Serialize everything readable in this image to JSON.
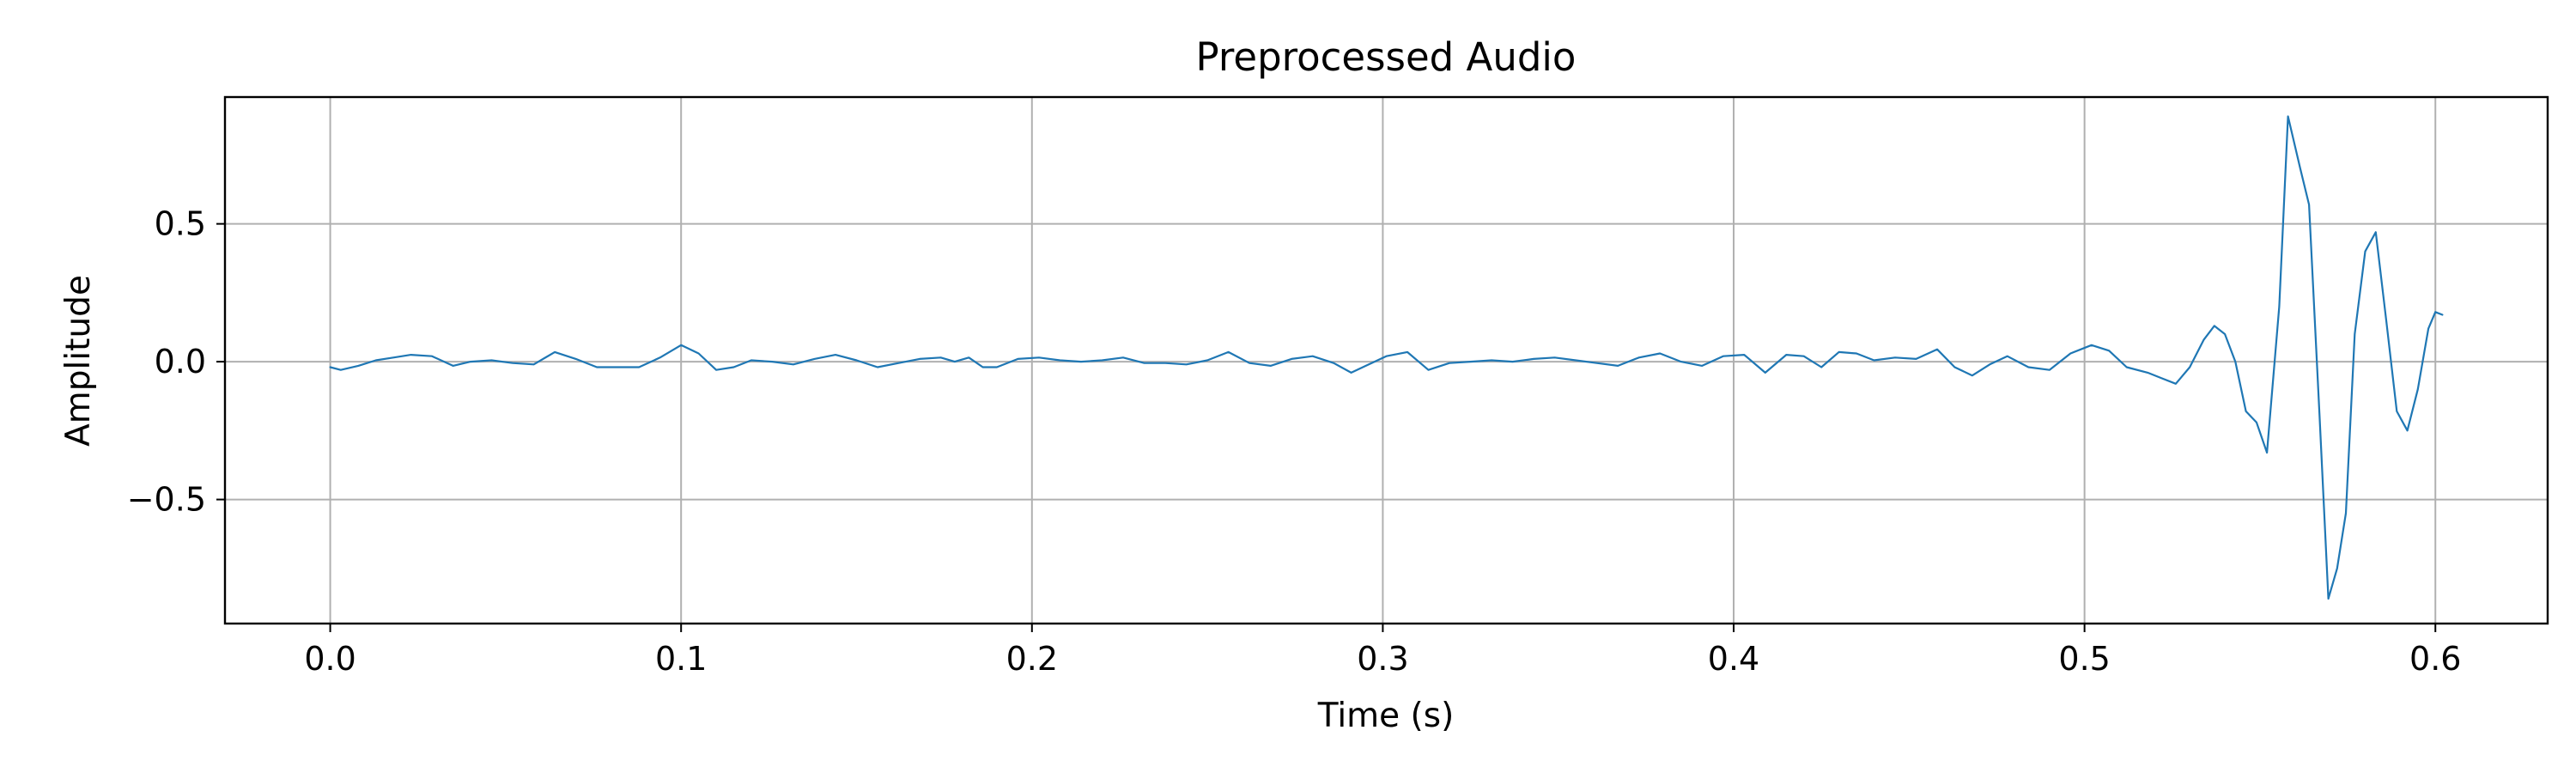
{
  "chart_data": {
    "type": "line",
    "title": "Preprocessed Audio",
    "xlabel": "Time (s)",
    "ylabel": "Amplitude",
    "xlim": [
      -0.03,
      0.632
    ],
    "ylim": [
      -0.95,
      0.96
    ],
    "x_ticks": [
      0.0,
      0.1,
      0.2,
      0.3,
      0.4,
      0.5,
      0.6
    ],
    "x_tick_labels": [
      "0.0",
      "0.1",
      "0.2",
      "0.3",
      "0.4",
      "0.5",
      "0.6"
    ],
    "y_ticks": [
      -0.5,
      0.0,
      0.5
    ],
    "y_tick_labels": [
      "−0.5",
      "0.0",
      "0.5"
    ],
    "grid": true,
    "line_color": "#1f77b4",
    "series": [
      {
        "x": [
          0.0,
          0.003,
          0.008,
          0.013,
          0.018,
          0.023,
          0.029,
          0.035,
          0.04,
          0.046,
          0.052,
          0.058,
          0.064,
          0.07,
          0.076,
          0.082,
          0.088,
          0.094,
          0.1,
          0.105,
          0.11,
          0.115,
          0.12,
          0.126,
          0.132,
          0.138,
          0.144,
          0.15,
          0.156,
          0.162,
          0.168,
          0.174,
          0.178,
          0.182,
          0.186,
          0.19,
          0.196,
          0.202,
          0.208,
          0.214,
          0.22,
          0.226,
          0.232,
          0.238,
          0.244,
          0.25,
          0.256,
          0.262,
          0.268,
          0.274,
          0.28,
          0.286,
          0.291,
          0.296,
          0.301,
          0.307,
          0.313,
          0.319,
          0.325,
          0.331,
          0.337,
          0.343,
          0.349,
          0.355,
          0.361,
          0.367,
          0.373,
          0.379,
          0.385,
          0.391,
          0.397,
          0.403,
          0.409,
          0.415,
          0.42,
          0.425,
          0.43,
          0.435,
          0.44,
          0.446,
          0.452,
          0.458,
          0.463,
          0.468,
          0.473,
          0.478,
          0.484,
          0.49,
          0.496,
          0.502,
          0.507,
          0.512,
          0.518,
          0.522,
          0.526,
          0.53,
          0.534,
          0.537,
          0.54,
          0.543,
          0.546,
          0.549,
          0.552,
          0.5555,
          0.558,
          0.5615,
          0.564,
          0.567,
          0.5695,
          0.572,
          0.5745,
          0.577,
          0.58,
          0.583,
          0.586,
          0.589,
          0.592,
          0.595,
          0.598,
          0.6,
          0.602
        ],
        "y": [
          -0.02,
          -0.03,
          -0.015,
          0.005,
          0.015,
          0.025,
          0.02,
          -0.015,
          0.0,
          0.005,
          -0.005,
          -0.01,
          0.035,
          0.01,
          -0.02,
          -0.02,
          -0.02,
          0.015,
          0.06,
          0.03,
          -0.03,
          -0.02,
          0.005,
          0.0,
          -0.01,
          0.01,
          0.025,
          0.005,
          -0.02,
          -0.005,
          0.01,
          0.015,
          0.0,
          0.015,
          -0.02,
          -0.02,
          0.01,
          0.015,
          0.005,
          0.0,
          0.005,
          0.015,
          -0.005,
          -0.005,
          -0.01,
          0.005,
          0.035,
          -0.005,
          -0.015,
          0.01,
          0.02,
          -0.005,
          -0.04,
          -0.01,
          0.02,
          0.035,
          -0.03,
          -0.005,
          0.0,
          0.005,
          0.0,
          0.01,
          0.015,
          0.005,
          -0.005,
          -0.015,
          0.015,
          0.03,
          0.0,
          -0.015,
          0.02,
          0.025,
          -0.04,
          0.025,
          0.02,
          -0.02,
          0.035,
          0.03,
          0.005,
          0.015,
          0.01,
          0.045,
          -0.02,
          -0.05,
          -0.01,
          0.02,
          -0.02,
          -0.03,
          0.03,
          0.06,
          0.04,
          -0.02,
          -0.04,
          -0.06,
          -0.08,
          -0.02,
          0.08,
          0.13,
          0.1,
          0.0,
          -0.18,
          -0.22,
          -0.33,
          0.2,
          0.89,
          0.7,
          0.57,
          -0.2,
          -0.86,
          -0.75,
          -0.55,
          0.1,
          0.4,
          0.47,
          0.15,
          -0.18,
          -0.25,
          -0.1,
          0.12,
          0.18,
          0.17
        ]
      }
    ]
  }
}
